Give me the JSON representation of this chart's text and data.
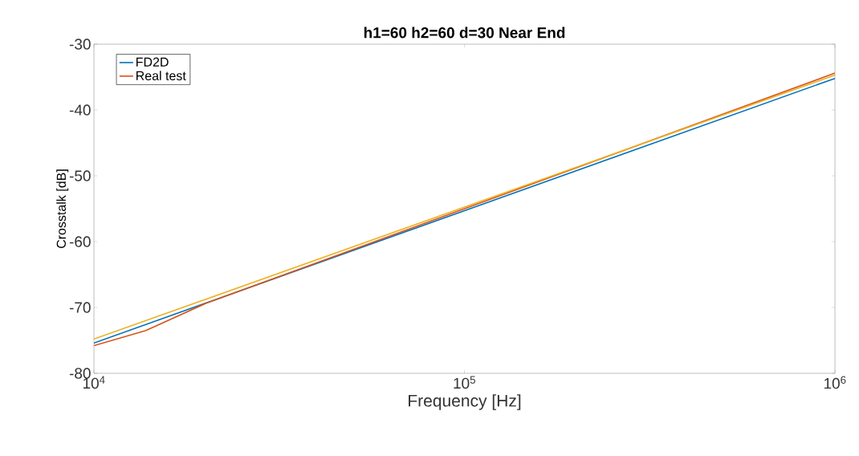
{
  "chart_data": {
    "type": "line",
    "title": "h1=60 h2=60 d=30 Near End",
    "xlabel": "Frequency [Hz]",
    "ylabel": "Crosstalk [dB]",
    "log": "x",
    "xlim": [
      10000,
      1000000
    ],
    "xticks": [
      {
        "value": 10000,
        "label": "10$^{4}$"
      },
      {
        "value": 100000,
        "label": "10$^{5}$"
      },
      {
        "value": 1000000,
        "label": "10$^{6}$"
      }
    ],
    "ylim": [
      -80,
      -30
    ],
    "yticks": [
      -80,
      -70,
      -60,
      -50,
      -40,
      -30
    ],
    "legend": "top left",
    "grid": false,
    "series": [
      {
        "name": "FD2D",
        "color": "#0072bd",
        "x": [
          10000,
          1000000
        ],
        "values": [
          -75.4,
          -35.2
        ]
      },
      {
        "name": "Real test",
        "color": "#d95319",
        "x": [
          10000,
          13800,
          20000,
          1000000
        ],
        "values": [
          -75.8,
          -73.5,
          -69.4,
          -34.4
        ]
      },
      {
        "color": "#edb120",
        "x": [
          10000,
          1000000
        ],
        "values": [
          -74.8,
          -34.7
        ]
      }
    ]
  }
}
